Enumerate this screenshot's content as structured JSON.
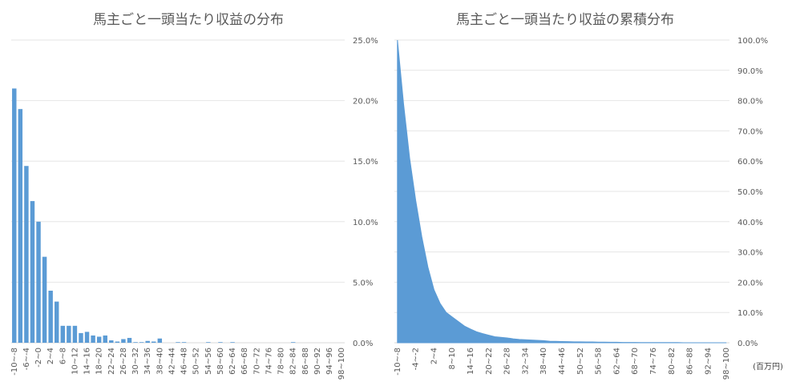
{
  "unit_label": "(百万円)",
  "chart_data": [
    {
      "type": "bar",
      "title": "馬主ごと一頭当たり収益の分布",
      "color": "#5B9BD5",
      "ylim": [
        0,
        25
      ],
      "yticks": [
        "0.0%",
        "5.0%",
        "10.0%",
        "15.0%",
        "20.0%",
        "25.0%"
      ],
      "y_axis_position": "right",
      "grid": true,
      "categories": [
        "-10~-8",
        "-8~-6",
        "-6~-4",
        "-4~-2",
        "-2~0",
        "0~2",
        "2~4",
        "4~6",
        "6~8",
        "8~10",
        "10~12",
        "12~14",
        "14~16",
        "16~18",
        "18~20",
        "20~22",
        "22~24",
        "24~26",
        "26~28",
        "28~30",
        "30~32",
        "32~34",
        "34~36",
        "36~38",
        "38~40",
        "40~42",
        "42~44",
        "44~46",
        "46~48",
        "48~50",
        "50~52",
        "52~54",
        "54~56",
        "56~58",
        "58~60",
        "60~62",
        "62~64",
        "64~66",
        "66~68",
        "68~70",
        "70~72",
        "72~74",
        "74~76",
        "76~78",
        "78~80",
        "80~82",
        "82~84",
        "84~86",
        "86~88",
        "88~90",
        "90~92",
        "92~94",
        "94~96",
        "96~98",
        "98~100"
      ],
      "tick_labels": [
        "-10~-8",
        "-6~-4",
        "-2~0",
        "2~4",
        "6~8",
        "10~12",
        "14~16",
        "18~20",
        "22~24",
        "26~28",
        "30~32",
        "34~36",
        "38~40",
        "42~44",
        "46~48",
        "50~52",
        "54~56",
        "58~60",
        "62~64",
        "66~68",
        "70~72",
        "74~76",
        "78~80",
        "82~84",
        "86~88",
        "90~92",
        "94~96",
        "98~100"
      ],
      "values": [
        21.0,
        19.3,
        14.6,
        11.7,
        10.0,
        7.1,
        4.3,
        3.4,
        1.4,
        1.4,
        1.4,
        0.8,
        0.9,
        0.6,
        0.5,
        0.6,
        0.2,
        0.1,
        0.3,
        0.4,
        0.05,
        0.05,
        0.15,
        0.1,
        0.35,
        0.0,
        0.0,
        0.05,
        0.05,
        0.0,
        0.0,
        0.0,
        0.05,
        0.0,
        0.05,
        0.0,
        0.05,
        0.0,
        0.0,
        0.0,
        0.0,
        0.0,
        0.0,
        0.0,
        0.0,
        0.0,
        0.05,
        0.0,
        0.0,
        0.0,
        0.0,
        0.0,
        0.0,
        0.0,
        0.0
      ]
    },
    {
      "type": "area",
      "title": "馬主ごと一頭当たり収益の累積分布",
      "color": "#5B9BD5",
      "ylim": [
        0,
        100
      ],
      "yticks": [
        "0.0%",
        "10.0%",
        "20.0%",
        "30.0%",
        "40.0%",
        "50.0%",
        "60.0%",
        "70.0%",
        "80.0%",
        "90.0%",
        "100.0%"
      ],
      "y_axis_position": "right",
      "grid": true,
      "categories": [
        "-10~-8",
        "-8~-6",
        "-6~-4",
        "-4~-2",
        "-2~0",
        "0~2",
        "2~4",
        "4~6",
        "6~8",
        "8~10",
        "10~12",
        "12~14",
        "14~16",
        "16~18",
        "18~20",
        "20~22",
        "22~24",
        "24~26",
        "26~28",
        "28~30",
        "30~32",
        "32~34",
        "34~36",
        "36~38",
        "38~40",
        "40~42",
        "42~44",
        "44~46",
        "46~48",
        "48~50",
        "50~52",
        "52~54",
        "54~56",
        "56~58",
        "58~60",
        "60~62",
        "62~64",
        "64~66",
        "66~68",
        "68~70",
        "70~72",
        "72~74",
        "74~76",
        "76~78",
        "78~80",
        "80~82",
        "82~84",
        "84~86",
        "86~88",
        "88~90",
        "90~92",
        "92~94",
        "94~96",
        "96~98",
        "98~100"
      ],
      "tick_labels": [
        "-10~-8",
        "-4~-2",
        "2~4",
        "8~10",
        "14~16",
        "20~22",
        "26~28",
        "32~34",
        "38~40",
        "44~46",
        "50~52",
        "56~58",
        "62~64",
        "68~70",
        "74~76",
        "80~82",
        "86~88",
        "92~94",
        "98~100"
      ],
      "values": [
        100,
        79,
        61,
        47,
        35,
        25,
        17.5,
        13,
        10,
        8.5,
        7,
        5.5,
        4.5,
        3.6,
        3.0,
        2.5,
        2.0,
        1.8,
        1.6,
        1.3,
        1.1,
        1.0,
        0.9,
        0.8,
        0.7,
        0.5,
        0.45,
        0.4,
        0.35,
        0.3,
        0.3,
        0.25,
        0.25,
        0.2,
        0.2,
        0.15,
        0.15,
        0.1,
        0.1,
        0.1,
        0.05,
        0.05,
        0.05,
        0.05,
        0.05,
        0.05,
        0.05,
        0.0,
        0.0,
        0.0,
        0.0,
        0.0,
        0.0,
        0.0,
        0.0
      ]
    }
  ]
}
